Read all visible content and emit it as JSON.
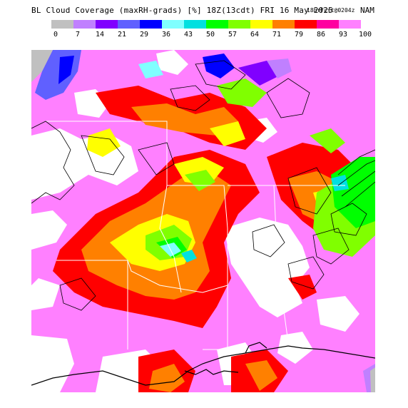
{
  "header": {
    "title": "BL Cloud Coverage (maxRH-grads) [%] 18Z(13cdt) FRI 16 May 2025",
    "forecast_tag": "18hrFcst@0204z",
    "model": "NAM"
  },
  "legend": {
    "colors": [
      "#c0c0c0",
      "#c080ff",
      "#8000ff",
      "#6060ff",
      "#0000ff",
      "#80ffff",
      "#00e0e0",
      "#00ff00",
      "#80ff00",
      "#ffff00",
      "#ff8000",
      "#ff0000",
      "#ff00a0",
      "#ff80ff"
    ],
    "ticks": [
      "0",
      "7",
      "14",
      "21",
      "29",
      "36",
      "43",
      "50",
      "57",
      "64",
      "71",
      "79",
      "86",
      "93",
      "100"
    ]
  },
  "map": {
    "region": "South-central United States",
    "colors": {
      "white": "#ffffff",
      "pink": "#ff80ff",
      "magenta": "#ff00a0",
      "red": "#ff0000",
      "orange": "#ff8000",
      "yellow": "#ffff00",
      "lime": "#80ff00",
      "green": "#00ff00",
      "cyan": "#00e0e0",
      "lightcyan": "#80ffff",
      "blue": "#0000ff",
      "slate": "#6060ff",
      "purple": "#8000ff",
      "violet": "#c080ff",
      "gray": "#c0c0c0"
    }
  }
}
